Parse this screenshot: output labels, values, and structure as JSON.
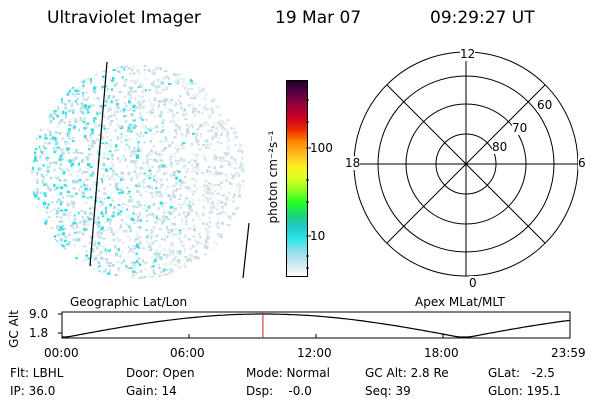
{
  "header": {
    "instrument": "Ultraviolet Imager",
    "date": "19 Mar 07",
    "time": "09:29:27 UT"
  },
  "colorbar": {
    "label": "photon cm⁻²s⁻¹",
    "ticks": [
      "100",
      "10"
    ],
    "colors": [
      "#ffffff",
      "#cfe8ee",
      "#8fe0ea",
      "#2ee6e6",
      "#22c8c8",
      "#1ed27a",
      "#22ff22",
      "#88ff22",
      "#ddff22",
      "#ffee22",
      "#ffbb22",
      "#ff8800",
      "#ee2a00",
      "#cc0022",
      "#99003a",
      "#5a0045",
      "#22002a"
    ]
  },
  "image_panel": {
    "dot_colors": [
      "#2ee0e6",
      "#a8dce6",
      "#d6e8ee",
      "#e8f0f2",
      "#c6dce0"
    ]
  },
  "polar_plot": {
    "mlt_labels": {
      "top": "12",
      "left": "18",
      "right": "6",
      "bottom": "0"
    },
    "lat_labels": [
      "60",
      "70",
      "80"
    ]
  },
  "altitude_plot": {
    "left_label": "Geographic Lat/Lon",
    "right_label": "Apex  MLat/MLT",
    "axis_label": "GC Alt",
    "y_ticks": [
      "9.0",
      "1.8"
    ],
    "x_ticks": [
      "00:00",
      "06:00",
      "12:00",
      "18:00",
      "23:59"
    ],
    "marker_time": "09:29:27"
  },
  "info": {
    "flt": "Flt: LBHL",
    "ip": "IP: 36.0",
    "door": "Door: Open",
    "gain": "Gain: 14",
    "mode": "Mode: Normal",
    "dsp": "Dsp:    -0.0",
    "gc_alt": "GC Alt: 2.8 Re",
    "seq": "Seq: 39",
    "glat": "GLat:   -2.5",
    "glon": "GLon: 195.1"
  }
}
